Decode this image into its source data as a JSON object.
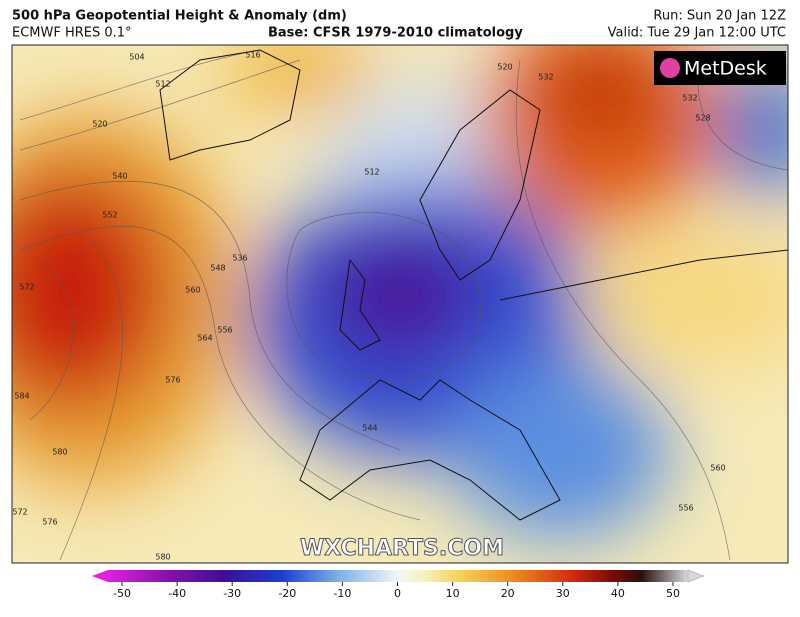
{
  "header": {
    "title": "500 hPa Geopotential Height & Anomaly (dm)",
    "model": "ECMWF HRES 0.1°",
    "base": "Base: CFSR 1979-2010 climatology",
    "run": "Run: Sun 20 Jan 12Z",
    "valid": "Valid: Tue 29 Jan 12:00 UTC"
  },
  "logo": "MetDesk",
  "watermark": "WXCHARTS.COM",
  "contour_labels": [
    504,
    516,
    512,
    520,
    540,
    552,
    572,
    548,
    536,
    560,
    564,
    556,
    576,
    584,
    580,
    572,
    576,
    580,
    512,
    520,
    532,
    532,
    528,
    544,
    556,
    560
  ],
  "colorbar": {
    "ticks": [
      -50,
      -40,
      -30,
      -20,
      -10,
      0,
      10,
      20,
      30,
      40,
      50
    ]
  }
}
